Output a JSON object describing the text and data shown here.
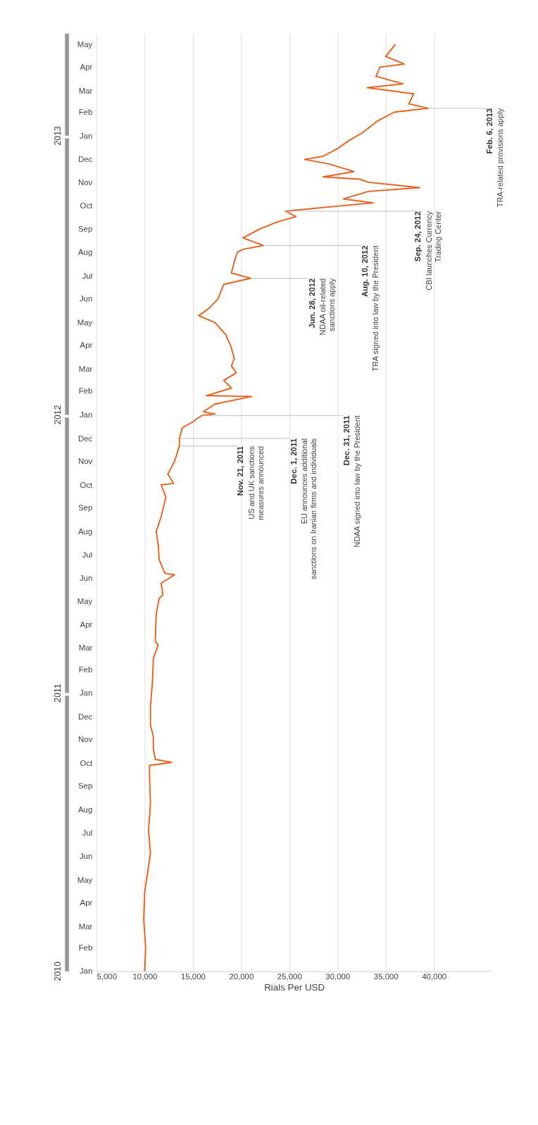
{
  "chart_data": {
    "type": "line",
    "xlabel": "Rials Per USD",
    "orientation": "horizontal",
    "x": [
      "2010-01-01",
      "2010-02-01",
      "2010-03-10",
      "2010-04-15",
      "2010-05-10",
      "2010-06-05",
      "2010-07-05",
      "2010-08-10",
      "2010-09-15",
      "2010-09-28",
      "2010-10-02",
      "2010-10-06",
      "2010-10-20",
      "2010-11-05",
      "2010-11-20",
      "2010-12-15",
      "2011-01-15",
      "2011-02-15",
      "2011-03-05",
      "2011-03-10",
      "2011-04-15",
      "2011-05-05",
      "2011-05-10",
      "2011-05-25",
      "2011-06-05",
      "2011-06-07",
      "2011-06-25",
      "2011-07-15",
      "2011-08-01",
      "2011-08-20",
      "2011-09-15",
      "2011-10-01",
      "2011-10-03",
      "2011-10-15",
      "2011-11-01",
      "2011-11-21",
      "2011-12-01",
      "2011-12-15",
      "2011-12-22",
      "2011-12-31",
      "2012-01-02",
      "2012-01-05",
      "2012-01-15",
      "2012-01-25",
      "2012-01-26",
      "2012-02-05",
      "2012-02-15",
      "2012-02-25",
      "2012-03-05",
      "2012-03-15",
      "2012-04-01",
      "2012-04-15",
      "2012-05-01",
      "2012-05-10",
      "2012-05-20",
      "2012-06-01",
      "2012-06-20",
      "2012-06-28",
      "2012-07-05",
      "2012-07-20",
      "2012-08-01",
      "2012-08-05",
      "2012-08-10",
      "2012-08-20",
      "2012-09-01",
      "2012-09-10",
      "2012-09-17",
      "2012-09-24",
      "2012-10-01",
      "2012-10-05",
      "2012-10-10",
      "2012-10-20",
      "2012-10-25",
      "2012-11-01",
      "2012-11-05",
      "2012-11-08",
      "2012-11-15",
      "2012-11-25",
      "2012-12-01",
      "2012-12-05",
      "2012-12-15",
      "2012-12-25",
      "2013-01-05",
      "2013-01-20",
      "2013-02-01",
      "2013-02-06",
      "2013-02-12",
      "2013-02-25",
      "2013-03-05",
      "2013-03-10",
      "2013-03-20",
      "2013-04-01",
      "2013-04-05",
      "2013-04-15",
      "2013-05-01"
    ],
    "series": [
      {
        "color": "#e8601c",
        "values": [
          10000,
          10100,
          9900,
          10000,
          10300,
          10600,
          10400,
          10600,
          10500,
          10500,
          12800,
          11100,
          10900,
          10900,
          10600,
          10600,
          10800,
          10900,
          11400,
          11100,
          11200,
          11500,
          11900,
          11700,
          13100,
          12100,
          11500,
          11400,
          11200,
          11700,
          12200,
          11700,
          13000,
          12400,
          13100,
          13600,
          13600,
          13900,
          14900,
          15900,
          17300,
          16100,
          17300,
          21100,
          16400,
          19000,
          18200,
          19500,
          19000,
          19300,
          18900,
          18400,
          17300,
          15600,
          16700,
          17600,
          18200,
          21000,
          19000,
          19300,
          19600,
          20200,
          22300,
          20200,
          22000,
          23800,
          25700,
          24600,
          30300,
          33700,
          30600,
          33200,
          38500,
          33200,
          32300,
          28500,
          31700,
          29100,
          26600,
          28500,
          30000,
          31100,
          32600,
          34100,
          35900,
          39400,
          37400,
          37900,
          33100,
          36800,
          34000,
          34400,
          36900,
          35000,
          36000
        ]
      }
    ],
    "ylim": [
      "2010-01-01",
      "2013-05-15"
    ],
    "yticks": [
      {
        "value": "2010-01-01",
        "label": "Jan"
      },
      {
        "value": "2010-02-01",
        "label": "Feb"
      },
      {
        "value": "2010-03-01",
        "label": "Mar"
      },
      {
        "value": "2010-04-01",
        "label": "Apr"
      },
      {
        "value": "2010-05-01",
        "label": "May"
      },
      {
        "value": "2010-06-01",
        "label": "Jun"
      },
      {
        "value": "2010-07-01",
        "label": "Jul"
      },
      {
        "value": "2010-08-01",
        "label": "Aug"
      },
      {
        "value": "2010-09-01",
        "label": "Sep"
      },
      {
        "value": "2010-10-01",
        "label": "Oct"
      },
      {
        "value": "2010-11-01",
        "label": "Nov"
      },
      {
        "value": "2010-12-01",
        "label": "Dec"
      },
      {
        "value": "2011-01-01",
        "label": "Jan"
      },
      {
        "value": "2011-02-01",
        "label": "Feb"
      },
      {
        "value": "2011-03-01",
        "label": "Mar"
      },
      {
        "value": "2011-04-01",
        "label": "Apr"
      },
      {
        "value": "2011-05-01",
        "label": "May"
      },
      {
        "value": "2011-06-01",
        "label": "Jun"
      },
      {
        "value": "2011-07-01",
        "label": "Jul"
      },
      {
        "value": "2011-08-01",
        "label": "Aug"
      },
      {
        "value": "2011-09-01",
        "label": "Sep"
      },
      {
        "value": "2011-10-01",
        "label": "Oct"
      },
      {
        "value": "2011-11-01",
        "label": "Nov"
      },
      {
        "value": "2011-12-01",
        "label": "Dec"
      },
      {
        "value": "2012-01-01",
        "label": "Jan"
      },
      {
        "value": "2012-02-01",
        "label": "Feb"
      },
      {
        "value": "2012-03-01",
        "label": "Mar"
      },
      {
        "value": "2012-04-01",
        "label": "Apr"
      },
      {
        "value": "2012-05-01",
        "label": "May"
      },
      {
        "value": "2012-06-01",
        "label": "Jun"
      },
      {
        "value": "2012-07-01",
        "label": "Jul"
      },
      {
        "value": "2012-08-01",
        "label": "Aug"
      },
      {
        "value": "2012-09-01",
        "label": "Sep"
      },
      {
        "value": "2012-10-01",
        "label": "Oct"
      },
      {
        "value": "2012-11-01",
        "label": "Nov"
      },
      {
        "value": "2012-12-01",
        "label": "Dec"
      },
      {
        "value": "2013-01-01",
        "label": "Jan"
      },
      {
        "value": "2013-02-01",
        "label": "Feb"
      },
      {
        "value": "2013-03-01",
        "label": "Mar"
      },
      {
        "value": "2013-04-01",
        "label": "Apr"
      },
      {
        "value": "2013-05-01",
        "label": "May"
      }
    ],
    "y2lim": [
      "2010-01-01",
      "2013-05-15"
    ],
    "y2ticks": [
      {
        "value": "2010-01-01",
        "label": "2010"
      },
      {
        "value": "2011-01-01",
        "label": "2011"
      },
      {
        "value": "2012-01-01",
        "label": "2012"
      },
      {
        "value": "2013-01-01",
        "label": "2013"
      }
    ],
    "xlim": [
      5000,
      46000
    ],
    "xticks": [
      {
        "value": 5000,
        "label": "5,000"
      },
      {
        "value": 10000,
        "label": "10,000"
      },
      {
        "value": 15000,
        "label": "15,000"
      },
      {
        "value": 20000,
        "label": "20,000"
      },
      {
        "value": 25000,
        "label": "25,000"
      },
      {
        "value": 30000,
        "label": "30,000"
      },
      {
        "value": 35000,
        "label": "35,000"
      },
      {
        "value": 40000,
        "label": "40,000"
      }
    ],
    "grid": "x",
    "ref_lines": [
      {
        "axis": "y",
        "value": "2011-11-21",
        "label": "Nov. 21, 2011\nUS and UK sanctions\nmeasures announced",
        "color": "#bbbbbb"
      },
      {
        "axis": "y",
        "value": "2011-12-01",
        "label": "Dec. 1, 2011\nEU announces additional\nsanctions on Iranian firms and individuals",
        "color": "#bbbbbb"
      },
      {
        "axis": "y",
        "value": "2011-12-31",
        "label": "Dec. 31, 2011\nNDAA signed into law by the President",
        "color": "#bbbbbb"
      },
      {
        "axis": "y",
        "value": "2012-06-28",
        "label": "Jun. 28, 2012\nNDAA oil-related\nsanctions apply",
        "color": "#bbbbbb"
      },
      {
        "axis": "y",
        "value": "2012-08-10",
        "label": "Aug. 10, 2012\nTRA signed into law by the President",
        "color": "#bbbbbb"
      },
      {
        "axis": "y",
        "value": "2012-09-24",
        "label": "Sep. 24, 2012\nCBI launches Currency\nTrading Center",
        "color": "#bbbbbb"
      },
      {
        "axis": "y",
        "value": "2013-02-06",
        "label": "Feb. 6, 2013\nTRA-related provisions apply",
        "color": "#bbbbbb"
      }
    ]
  }
}
